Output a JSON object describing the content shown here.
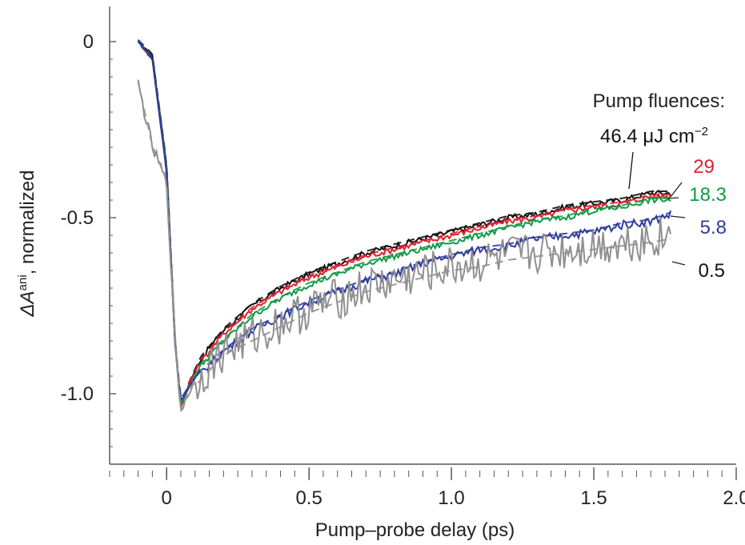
{
  "chart_data": {
    "type": "line",
    "title": "",
    "xlabel": "Pump–probe delay (ps)",
    "ylabel_main": "ΔA",
    "ylabel_sup": "ani",
    "ylabel_rest": ", normalized",
    "xlim": [
      -0.2,
      2.0
    ],
    "ylim": [
      -1.2,
      0.1
    ],
    "xticks": [
      0,
      0.5,
      1.0,
      1.5,
      2.0
    ],
    "xtick_labels": [
      "0",
      "0.5",
      "1.0",
      "1.5",
      "2.0"
    ],
    "yticks": [
      0,
      -0.5,
      -1.0
    ],
    "ytick_labels": [
      "0",
      "-0.5",
      "-1.0"
    ],
    "grid": false,
    "legend_title": "Pump fluences:",
    "legend_placement": "top-right",
    "fluence_unit_main": "46.4 μJ cm",
    "fluence_unit_sup": "−2",
    "series": [
      {
        "name": "46.4",
        "color": "#111111",
        "x": [
          -0.1,
          -0.05,
          0.0,
          0.03,
          0.05,
          0.08,
          0.12,
          0.2,
          0.3,
          0.4,
          0.5,
          0.6,
          0.7,
          0.8,
          0.9,
          1.0,
          1.1,
          1.2,
          1.3,
          1.4,
          1.5,
          1.6,
          1.7,
          1.77
        ],
        "y": [
          0.0,
          -0.04,
          -0.35,
          -0.85,
          -1.04,
          -0.97,
          -0.9,
          -0.82,
          -0.75,
          -0.7,
          -0.66,
          -0.63,
          -0.6,
          -0.58,
          -0.56,
          -0.54,
          -0.52,
          -0.5,
          -0.49,
          -0.47,
          -0.46,
          -0.45,
          -0.43,
          -0.43
        ]
      },
      {
        "name": "29",
        "color": "#e0202e",
        "x": [
          -0.1,
          -0.05,
          0.0,
          0.03,
          0.05,
          0.08,
          0.12,
          0.2,
          0.3,
          0.4,
          0.5,
          0.6,
          0.7,
          0.8,
          0.9,
          1.0,
          1.1,
          1.2,
          1.3,
          1.4,
          1.5,
          1.6,
          1.7,
          1.77
        ],
        "y": [
          0.0,
          -0.05,
          -0.36,
          -0.86,
          -1.04,
          -0.97,
          -0.91,
          -0.83,
          -0.76,
          -0.71,
          -0.67,
          -0.64,
          -0.61,
          -0.59,
          -0.57,
          -0.55,
          -0.53,
          -0.51,
          -0.5,
          -0.48,
          -0.47,
          -0.46,
          -0.44,
          -0.44
        ]
      },
      {
        "name": "18.3",
        "color": "#119a45",
        "x": [
          -0.1,
          -0.05,
          0.0,
          0.03,
          0.05,
          0.08,
          0.12,
          0.2,
          0.3,
          0.4,
          0.5,
          0.6,
          0.7,
          0.8,
          0.9,
          1.0,
          1.1,
          1.2,
          1.3,
          1.4,
          1.5,
          1.6,
          1.7,
          1.77
        ],
        "y": [
          0.0,
          -0.05,
          -0.36,
          -0.86,
          -1.03,
          -0.98,
          -0.92,
          -0.85,
          -0.78,
          -0.73,
          -0.69,
          -0.66,
          -0.63,
          -0.61,
          -0.59,
          -0.57,
          -0.55,
          -0.53,
          -0.51,
          -0.5,
          -0.48,
          -0.47,
          -0.45,
          -0.45
        ]
      },
      {
        "name": "5.8",
        "color": "#2e3d9c",
        "x": [
          -0.1,
          -0.05,
          0.0,
          0.03,
          0.05,
          0.08,
          0.12,
          0.2,
          0.3,
          0.4,
          0.5,
          0.6,
          0.7,
          0.8,
          0.9,
          1.0,
          1.1,
          1.2,
          1.3,
          1.4,
          1.5,
          1.6,
          1.7,
          1.77
        ],
        "y": [
          0.0,
          -0.05,
          -0.37,
          -0.86,
          -1.02,
          -0.98,
          -0.94,
          -0.88,
          -0.82,
          -0.78,
          -0.74,
          -0.71,
          -0.68,
          -0.66,
          -0.63,
          -0.61,
          -0.59,
          -0.58,
          -0.56,
          -0.55,
          -0.54,
          -0.52,
          -0.51,
          -0.49
        ]
      },
      {
        "name": "0.5",
        "color": "#909090",
        "x": [
          -0.1,
          -0.05,
          0.0,
          0.03,
          0.05,
          0.08,
          0.12,
          0.2,
          0.3,
          0.4,
          0.5,
          0.6,
          0.7,
          0.8,
          0.9,
          1.0,
          1.1,
          1.2,
          1.3,
          1.4,
          1.5,
          1.6,
          1.7,
          1.77
        ],
        "y": [
          -0.12,
          -0.3,
          -0.4,
          -0.85,
          -1.05,
          -0.99,
          -0.95,
          -0.88,
          -0.84,
          -0.8,
          -0.76,
          -0.73,
          -0.7,
          -0.68,
          -0.66,
          -0.64,
          -0.63,
          -0.61,
          -0.6,
          -0.59,
          -0.58,
          -0.57,
          -0.56,
          -0.55
        ]
      }
    ]
  }
}
